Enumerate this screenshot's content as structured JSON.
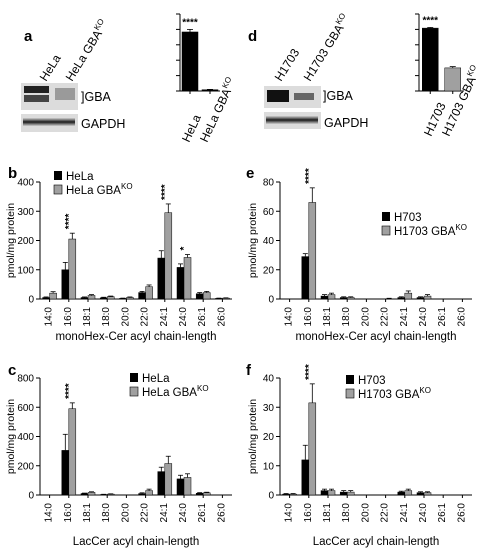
{
  "figure": {
    "panels": {
      "a": {
        "label": "a",
        "lanes": [
          "HeLa",
          "HeLa GBA",
          "KO"
        ],
        "blot_labels": {
          "gba": "]GBA",
          "gapdh": "GAPDH"
        },
        "inset": {
          "categories": [
            "HeLa",
            "HeLa GBA",
            "KO"
          ],
          "star": "****"
        }
      },
      "d": {
        "label": "d",
        "lanes": [
          "H1703",
          "H1703 GBA",
          "KO"
        ],
        "blot_labels": {
          "gba": "]GBA",
          "gapdh": "GAPDH"
        },
        "inset": {
          "categories": [
            "H1703",
            "H1703 GBA",
            "KO"
          ],
          "star": "****"
        }
      },
      "b": {
        "label": "b",
        "legend": [
          "HeLa",
          "HeLa GBA",
          "KO"
        ]
      },
      "c": {
        "label": "c",
        "legend": [
          "HeLa",
          "HeLa GBA",
          "KO"
        ]
      },
      "e": {
        "label": "e",
        "legend": [
          "H703",
          "H1703 GBA",
          "KO"
        ]
      },
      "f": {
        "label": "f",
        "legend": [
          "H703",
          "H1703 GBA",
          "KO"
        ]
      }
    }
  },
  "chart_data": [
    {
      "id": "a-inset",
      "type": "bar",
      "categories": [
        "HeLa",
        "HeLa GBAKO"
      ],
      "values": [
        0.92,
        0.02
      ],
      "errors": [
        0.04,
        0.005
      ],
      "ylim": [
        0,
        1.2
      ],
      "ytick_count": 5,
      "colors": [
        "#000000",
        "#000000"
      ],
      "annotations": [
        {
          "index": 0,
          "text": "****"
        }
      ]
    },
    {
      "id": "d-inset",
      "type": "bar",
      "categories": [
        "H1703",
        "H1703 GBAKO"
      ],
      "values": [
        0.98,
        0.36
      ],
      "errors": [
        0.01,
        0.02
      ],
      "ylim": [
        0,
        1.2
      ],
      "ytick_count": 5,
      "colors": [
        "#000000",
        "#a0a0a0"
      ],
      "annotations": [
        {
          "index": 0,
          "text": "****"
        }
      ]
    },
    {
      "id": "b",
      "type": "bar",
      "categories": [
        "14:0",
        "16:0",
        "18:1",
        "18:0",
        "20:0",
        "22:0",
        "24:1",
        "24:0",
        "26:1",
        "26:0"
      ],
      "xlabel": "monoHex-Cer acyl chain-length",
      "ylabel": "pmol/mg protein",
      "ylim": [
        0,
        400
      ],
      "yticks": [
        0,
        100,
        200,
        300,
        400
      ],
      "series": [
        {
          "name": "HeLa",
          "color": "#000000",
          "values": [
            5,
            100,
            5,
            4,
            2,
            22,
            140,
            108,
            18,
            2
          ],
          "errors": [
            2,
            25,
            2,
            2,
            1,
            4,
            25,
            12,
            4,
            1
          ]
        },
        {
          "name": "HeLa GBAKO",
          "color": "#a0a0a0",
          "values": [
            20,
            205,
            12,
            8,
            5,
            42,
            295,
            142,
            22,
            3
          ],
          "errors": [
            5,
            20,
            3,
            2,
            2,
            6,
            30,
            10,
            4,
            1
          ]
        }
      ],
      "annotations": [
        {
          "index": 1,
          "text": "****"
        },
        {
          "index": 6,
          "text": "****"
        },
        {
          "index": 7,
          "text": "*"
        }
      ]
    },
    {
      "id": "c",
      "type": "bar",
      "categories": [
        "14:0",
        "16:0",
        "18:1",
        "18:0",
        "20:0",
        "22:0",
        "24:1",
        "24:0",
        "26:1",
        "26:0"
      ],
      "xlabel": "LacCer acyl chain-length",
      "ylabel": "pmol/mg protein",
      "ylim": [
        0,
        800
      ],
      "yticks": [
        0,
        200,
        400,
        600,
        800
      ],
      "series": [
        {
          "name": "HeLa",
          "color": "#000000",
          "values": [
            0,
            305,
            10,
            3,
            0,
            10,
            160,
            110,
            12,
            0
          ],
          "errors": [
            0,
            110,
            3,
            2,
            0,
            5,
            30,
            25,
            4,
            0
          ]
        },
        {
          "name": "HeLa GBAKO",
          "color": "#a0a0a0",
          "values": [
            0,
            590,
            18,
            6,
            0,
            30,
            215,
            120,
            15,
            0
          ],
          "errors": [
            0,
            40,
            4,
            2,
            0,
            10,
            50,
            25,
            4,
            0
          ]
        }
      ],
      "annotations": [
        {
          "index": 1,
          "text": "****"
        }
      ]
    },
    {
      "id": "e",
      "type": "bar",
      "categories": [
        "14:0",
        "16:0",
        "18:1",
        "18:0",
        "20:0",
        "22:0",
        "24:1",
        "24:0",
        "26:1",
        "26:0"
      ],
      "xlabel": "monoHex-Cer acyl chain-length",
      "ylabel": "pmol/mg protein",
      "ylim": [
        0,
        80
      ],
      "yticks": [
        0,
        20,
        40,
        60,
        80
      ],
      "series": [
        {
          "name": "H703",
          "color": "#000000",
          "values": [
            0,
            29,
            2,
            1,
            0,
            0,
            1,
            1,
            0,
            0
          ],
          "errors": [
            0,
            2,
            1,
            0.5,
            0,
            0,
            0.5,
            0.5,
            0,
            0
          ]
        },
        {
          "name": "H1703 GBAKO",
          "color": "#a0a0a0",
          "values": [
            0,
            66,
            3,
            1,
            0,
            0,
            4,
            2,
            0,
            0
          ],
          "errors": [
            0,
            10,
            1,
            0.5,
            0,
            0.5,
            1.5,
            1,
            0,
            0
          ]
        }
      ],
      "annotations": [
        {
          "index": 1,
          "text": "****"
        }
      ]
    },
    {
      "id": "f",
      "type": "bar",
      "categories": [
        "14:0",
        "16:0",
        "18:1",
        "18:0",
        "20:0",
        "22:0",
        "24:1",
        "24:0",
        "26:1",
        "26:0"
      ],
      "xlabel": "LacCer acyl chain-length",
      "ylabel": "pmol/mg protein",
      "ylim": [
        0,
        40
      ],
      "yticks": [
        0,
        10,
        20,
        30,
        40
      ],
      "series": [
        {
          "name": "H703",
          "color": "#000000",
          "values": [
            0.3,
            12,
            1.5,
            1,
            0,
            0,
            1,
            0.8,
            0,
            0
          ],
          "errors": [
            0.2,
            5,
            0.5,
            0.5,
            0,
            0,
            0.3,
            0.3,
            0,
            0
          ]
        },
        {
          "name": "H1703 GBAKO",
          "color": "#a0a0a0",
          "values": [
            0.3,
            31.5,
            1.5,
            1,
            0,
            0,
            1.5,
            0.8,
            0,
            0
          ],
          "errors": [
            0.2,
            6.5,
            0.5,
            0.5,
            0,
            0,
            0.5,
            0.3,
            0,
            0
          ]
        }
      ],
      "annotations": [
        {
          "index": 1,
          "text": "****"
        }
      ]
    }
  ]
}
